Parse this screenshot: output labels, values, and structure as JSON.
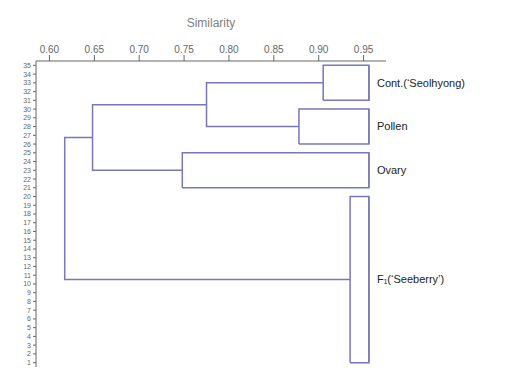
{
  "chart_data": {
    "type": "dendrogram",
    "x_label": "Similarity",
    "xlim": [
      0.585,
      0.975
    ],
    "xticks": [
      {
        "value": 0.6,
        "label": "0.60"
      },
      {
        "value": 0.65,
        "label": "0.65"
      },
      {
        "value": 0.7,
        "label": "0.70"
      },
      {
        "value": 0.75,
        "label": "0.75"
      },
      {
        "value": 0.8,
        "label": "0.80"
      },
      {
        "value": 0.85,
        "label": "0.85"
      },
      {
        "value": 0.9,
        "label": "0.90"
      },
      {
        "value": 0.95,
        "label": "0.95"
      }
    ],
    "ylim": [
      0.5,
      35.5
    ],
    "yticks": [
      1,
      2,
      3,
      4,
      5,
      6,
      7,
      8,
      9,
      10,
      11,
      12,
      13,
      14,
      15,
      16,
      17,
      18,
      19,
      20,
      21,
      22,
      23,
      24,
      25,
      26,
      27,
      28,
      29,
      30,
      31,
      32,
      33,
      34,
      35
    ],
    "color": "#7777bb",
    "series": [
      {
        "x": [
          0.905,
          0.905,
          0.956,
          0.956,
          0.905
        ],
        "values": [
          31,
          35,
          35,
          31,
          31
        ]
      },
      {
        "x": [
          0.878,
          0.878,
          0.956,
          0.956,
          0.878
        ],
        "values": [
          26,
          30,
          30,
          26,
          26
        ]
      },
      {
        "x": [
          0.905,
          0.775,
          0.775,
          0.878
        ],
        "values": [
          33,
          33,
          28,
          28
        ]
      },
      {
        "x": [
          0.748,
          0.748,
          0.956,
          0.956,
          0.748
        ],
        "values": [
          21,
          25,
          25,
          21,
          21
        ]
      },
      {
        "x": [
          0.775,
          0.648,
          0.648,
          0.748
        ],
        "values": [
          30.5,
          30.5,
          23,
          23
        ]
      },
      {
        "x": [
          0.935,
          0.935,
          0.956,
          0.956,
          0.935
        ],
        "values": [
          1,
          20,
          20,
          1,
          1
        ]
      },
      {
        "x": [
          0.648,
          0.617,
          0.617,
          0.935
        ],
        "values": [
          26.75,
          26.75,
          10.5,
          10.5
        ]
      }
    ],
    "bracket_x": 0.956,
    "brackets": [
      {
        "y1": 31,
        "y2": 35
      },
      {
        "y1": 26,
        "y2": 30
      },
      {
        "y1": 21,
        "y2": 25
      },
      {
        "y1": 1,
        "y2": 20
      }
    ],
    "group_labels": [
      {
        "text": "Cont.(‘Seolhyong)",
        "y": 33
      },
      {
        "text": "Pollen",
        "y": 28
      },
      {
        "text": "Ovary",
        "y": 23
      },
      {
        "text": "F₁(‘Seeberry’)",
        "y": 10.5
      }
    ]
  }
}
